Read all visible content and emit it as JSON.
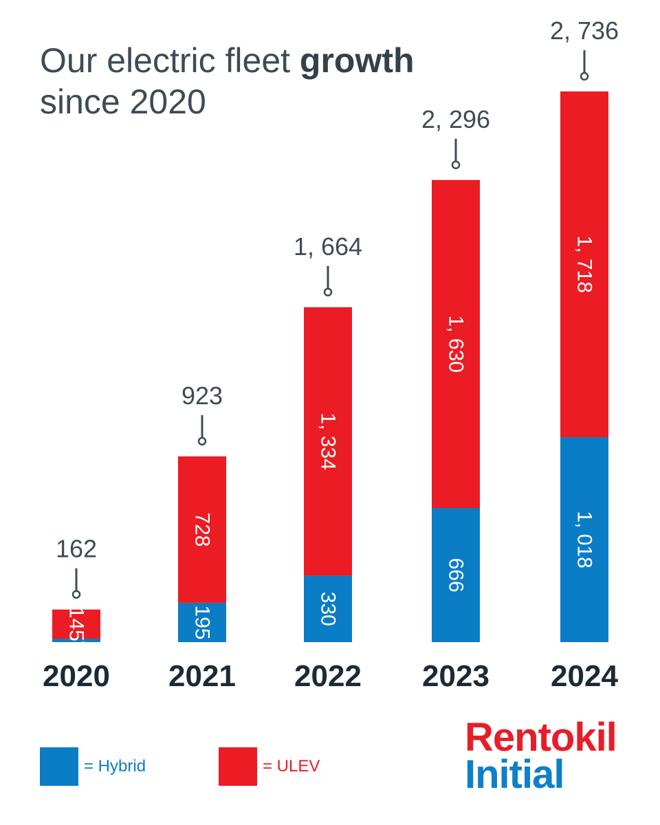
{
  "title": {
    "line1_prefix": "Our electric fleet",
    "line1_bold": "growth",
    "line2": "since 2020"
  },
  "chart_data": {
    "type": "bar",
    "stacked": true,
    "categories": [
      "2020",
      "2021",
      "2022",
      "2023",
      "2024"
    ],
    "series": [
      {
        "name": "Hybrid",
        "color": "#0a7dc6",
        "values": [
          17,
          195,
          330,
          666,
          1018
        ],
        "labels": [
          "17",
          "195",
          "330",
          "666",
          "1, 018"
        ]
      },
      {
        "name": "ULEV",
        "color": "#ec1c24",
        "values": [
          145,
          728,
          1334,
          1630,
          1718
        ],
        "labels": [
          "145",
          "728",
          "1, 334",
          "1, 630",
          "1, 718"
        ]
      }
    ],
    "totals": [
      162,
      923,
      1664,
      2296,
      2736
    ],
    "total_labels": [
      "162",
      "923",
      "1, 664",
      "2, 296",
      "2, 736"
    ],
    "ylim": [
      0,
      2736
    ],
    "grid": false,
    "legend_position": "bottom-left"
  },
  "legend": [
    {
      "label": "= Hybrid",
      "color": "#0a7dc6"
    },
    {
      "label": "= ULEV",
      "color": "#ec1c24"
    }
  ],
  "logo": {
    "line1": "Rentokil",
    "line2": "Initial"
  }
}
